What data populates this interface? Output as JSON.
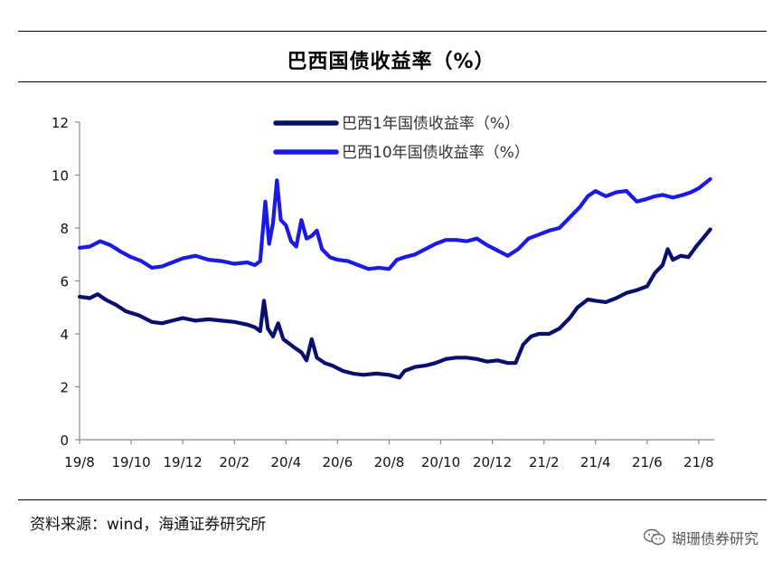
{
  "title": "巴西国债收益率（%）",
  "source": "资料来源：wind，海通证券研究所",
  "watermark": "瑚珊债券研究",
  "chart_data": {
    "type": "line",
    "title": "巴西国债收益率（%）",
    "ylim": [
      0,
      12
    ],
    "yticks": [
      0,
      2,
      4,
      6,
      8,
      10,
      12
    ],
    "xlim": [
      0,
      24.6
    ],
    "xticks": [
      {
        "label": "19/8",
        "pos": 0
      },
      {
        "label": "19/10",
        "pos": 2
      },
      {
        "label": "19/12",
        "pos": 4
      },
      {
        "label": "20/2",
        "pos": 6
      },
      {
        "label": "20/4",
        "pos": 8
      },
      {
        "label": "20/6",
        "pos": 10
      },
      {
        "label": "20/8",
        "pos": 12
      },
      {
        "label": "20/10",
        "pos": 14
      },
      {
        "label": "20/12",
        "pos": 16
      },
      {
        "label": "21/2",
        "pos": 18
      },
      {
        "label": "21/4",
        "pos": 20
      },
      {
        "label": "21/6",
        "pos": 22
      },
      {
        "label": "21/8",
        "pos": 24
      }
    ],
    "grid": false,
    "legend": "top-center",
    "series": [
      {
        "name": "巴西1年国债收益率（%）",
        "color": "#0a0f6e",
        "points": [
          [
            0,
            5.4
          ],
          [
            0.4,
            5.35
          ],
          [
            0.7,
            5.5
          ],
          [
            1.0,
            5.3
          ],
          [
            1.4,
            5.1
          ],
          [
            1.8,
            4.85
          ],
          [
            2.3,
            4.7
          ],
          [
            2.8,
            4.45
          ],
          [
            3.2,
            4.4
          ],
          [
            3.6,
            4.5
          ],
          [
            4.0,
            4.6
          ],
          [
            4.5,
            4.5
          ],
          [
            5.0,
            4.55
          ],
          [
            5.5,
            4.5
          ],
          [
            6.0,
            4.45
          ],
          [
            6.5,
            4.35
          ],
          [
            6.8,
            4.25
          ],
          [
            7.0,
            4.1
          ],
          [
            7.15,
            5.25
          ],
          [
            7.3,
            4.2
          ],
          [
            7.5,
            3.9
          ],
          [
            7.7,
            4.4
          ],
          [
            7.9,
            3.8
          ],
          [
            8.3,
            3.5
          ],
          [
            8.6,
            3.3
          ],
          [
            8.8,
            3.0
          ],
          [
            9.0,
            3.8
          ],
          [
            9.2,
            3.1
          ],
          [
            9.5,
            2.9
          ],
          [
            9.8,
            2.8
          ],
          [
            10.2,
            2.6
          ],
          [
            10.6,
            2.5
          ],
          [
            11.0,
            2.45
          ],
          [
            11.5,
            2.5
          ],
          [
            12.0,
            2.45
          ],
          [
            12.4,
            2.35
          ],
          [
            12.6,
            2.6
          ],
          [
            13.0,
            2.75
          ],
          [
            13.4,
            2.8
          ],
          [
            13.8,
            2.9
          ],
          [
            14.2,
            3.05
          ],
          [
            14.6,
            3.1
          ],
          [
            15.0,
            3.1
          ],
          [
            15.4,
            3.05
          ],
          [
            15.8,
            2.95
          ],
          [
            16.2,
            3.0
          ],
          [
            16.6,
            2.9
          ],
          [
            16.9,
            2.9
          ],
          [
            17.2,
            3.6
          ],
          [
            17.5,
            3.9
          ],
          [
            17.8,
            4.0
          ],
          [
            18.2,
            4.0
          ],
          [
            18.6,
            4.2
          ],
          [
            19.0,
            4.6
          ],
          [
            19.3,
            5.0
          ],
          [
            19.7,
            5.3
          ],
          [
            20.0,
            5.25
          ],
          [
            20.4,
            5.2
          ],
          [
            20.8,
            5.35
          ],
          [
            21.2,
            5.55
          ],
          [
            21.6,
            5.65
          ],
          [
            22.0,
            5.8
          ],
          [
            22.3,
            6.3
          ],
          [
            22.6,
            6.6
          ],
          [
            22.8,
            7.2
          ],
          [
            23.0,
            6.8
          ],
          [
            23.3,
            6.95
          ],
          [
            23.6,
            6.9
          ],
          [
            23.9,
            7.3
          ],
          [
            24.2,
            7.65
          ],
          [
            24.45,
            7.95
          ]
        ]
      },
      {
        "name": "巴西10年国债收益率（%）",
        "color": "#1a1ae6",
        "points": [
          [
            0,
            7.25
          ],
          [
            0.4,
            7.3
          ],
          [
            0.8,
            7.5
          ],
          [
            1.2,
            7.35
          ],
          [
            1.6,
            7.1
          ],
          [
            2.0,
            6.9
          ],
          [
            2.4,
            6.75
          ],
          [
            2.8,
            6.5
          ],
          [
            3.2,
            6.55
          ],
          [
            3.6,
            6.7
          ],
          [
            4.0,
            6.85
          ],
          [
            4.5,
            6.95
          ],
          [
            5.0,
            6.8
          ],
          [
            5.5,
            6.75
          ],
          [
            6.0,
            6.65
          ],
          [
            6.5,
            6.7
          ],
          [
            6.8,
            6.6
          ],
          [
            7.0,
            6.75
          ],
          [
            7.2,
            9.0
          ],
          [
            7.35,
            7.4
          ],
          [
            7.5,
            8.2
          ],
          [
            7.65,
            9.8
          ],
          [
            7.8,
            8.3
          ],
          [
            8.0,
            8.1
          ],
          [
            8.2,
            7.5
          ],
          [
            8.4,
            7.3
          ],
          [
            8.6,
            8.3
          ],
          [
            8.8,
            7.6
          ],
          [
            9.0,
            7.7
          ],
          [
            9.2,
            7.9
          ],
          [
            9.4,
            7.2
          ],
          [
            9.7,
            6.9
          ],
          [
            10.0,
            6.8
          ],
          [
            10.4,
            6.75
          ],
          [
            10.8,
            6.6
          ],
          [
            11.2,
            6.45
          ],
          [
            11.6,
            6.5
          ],
          [
            12.0,
            6.45
          ],
          [
            12.3,
            6.8
          ],
          [
            12.6,
            6.9
          ],
          [
            13.0,
            7.0
          ],
          [
            13.4,
            7.2
          ],
          [
            13.8,
            7.4
          ],
          [
            14.2,
            7.55
          ],
          [
            14.6,
            7.55
          ],
          [
            15.0,
            7.5
          ],
          [
            15.4,
            7.6
          ],
          [
            15.8,
            7.35
          ],
          [
            16.2,
            7.15
          ],
          [
            16.6,
            6.95
          ],
          [
            17.0,
            7.2
          ],
          [
            17.4,
            7.6
          ],
          [
            17.8,
            7.75
          ],
          [
            18.2,
            7.9
          ],
          [
            18.6,
            8.0
          ],
          [
            19.0,
            8.4
          ],
          [
            19.4,
            8.8
          ],
          [
            19.7,
            9.2
          ],
          [
            20.0,
            9.4
          ],
          [
            20.4,
            9.2
          ],
          [
            20.8,
            9.35
          ],
          [
            21.2,
            9.4
          ],
          [
            21.6,
            9.0
          ],
          [
            22.0,
            9.1
          ],
          [
            22.3,
            9.2
          ],
          [
            22.6,
            9.25
          ],
          [
            23.0,
            9.15
          ],
          [
            23.4,
            9.25
          ],
          [
            23.7,
            9.35
          ],
          [
            24.0,
            9.5
          ],
          [
            24.45,
            9.85
          ]
        ]
      }
    ]
  }
}
